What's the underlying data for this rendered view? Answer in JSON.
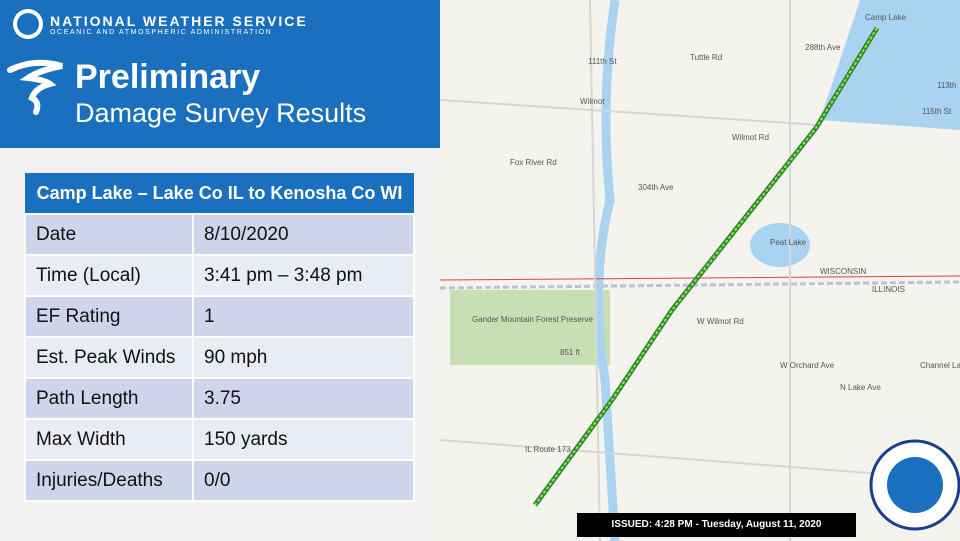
{
  "header": {
    "agency": "NATIONAL WEATHER SERVICE",
    "subagency": "OCEANIC AND ATMOSPHERIC ADMINISTRATION",
    "title": "Preliminary",
    "subtitle": "Damage Survey Results"
  },
  "table": {
    "title": "Camp Lake – Lake Co IL to Kenosha Co WI",
    "rows": [
      [
        "Date",
        "8/10/2020"
      ],
      [
        "Time (Local)",
        "3:41 pm – 3:48 pm"
      ],
      [
        "EF Rating",
        "1"
      ],
      [
        "Est. Peak Winds",
        "90 mph"
      ],
      [
        "Path Length",
        "3.75"
      ],
      [
        "Max Width",
        "150 yards"
      ],
      [
        "Injuries/Deaths",
        "0/0"
      ]
    ]
  },
  "map": {
    "labels": [
      "Camp Lake",
      "Wilmot",
      "111th St",
      "Tuttle Rd",
      "288th Ave",
      "Wilmot Rd",
      "Fox River Rd",
      "304th Ave",
      "Peat Lake",
      "WISCONSIN",
      "ILLINOIS",
      "W Wilmot Rd",
      "Gander Mountain Forest Preserve",
      "851 ft",
      "W Orchard Ave",
      "N Lake Ave",
      "Channel Lake",
      "IL Route 173",
      "113th",
      "115th St"
    ]
  },
  "issued": "ISSUED: 4:28 PM - Tuesday, August 11, 2020"
}
